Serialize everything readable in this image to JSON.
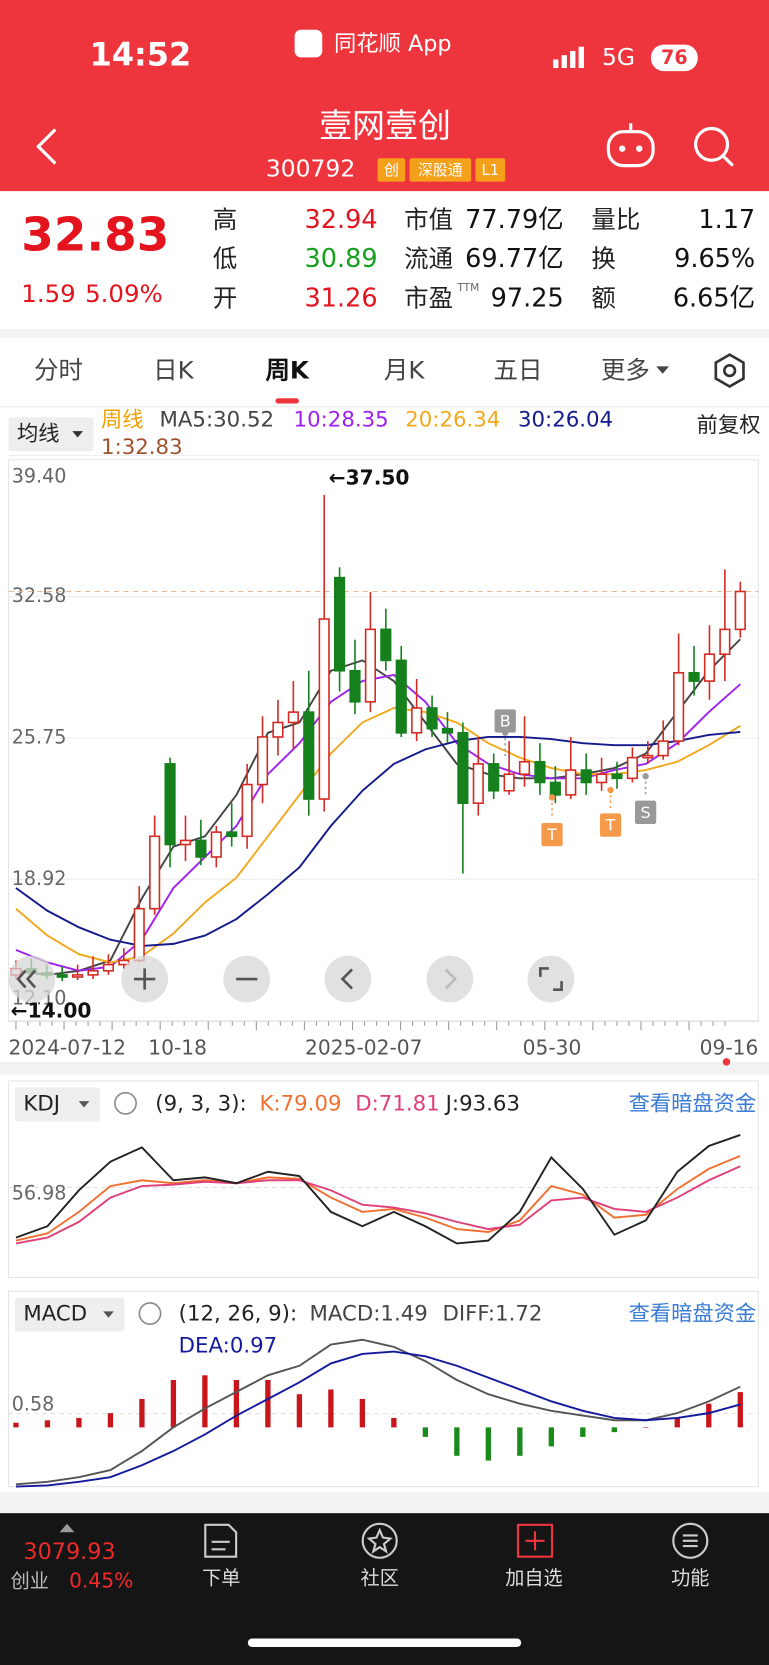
{
  "status_bar": {
    "time": "14:52",
    "app": "同花顺 App",
    "network": "5G",
    "battery": "76"
  },
  "header": {
    "title": "壹网壹创",
    "code": "300792",
    "tags": [
      "创",
      "深股通",
      "L1"
    ]
  },
  "quote": {
    "price": "32.83",
    "change": "1.59",
    "change_pct": "5.09%",
    "stats": [
      {
        "label": "高",
        "value": "32.94"
      },
      {
        "label": "低",
        "value": "30.89"
      },
      {
        "label": "开",
        "value": "31.26"
      },
      {
        "label": "市值",
        "value": "77.79亿"
      },
      {
        "label": "流通",
        "value": "69.77亿"
      },
      {
        "label": "市盈",
        "sup": "TTM",
        "value": "97.25"
      },
      {
        "label": "量比",
        "value": "1.17"
      },
      {
        "label": "换",
        "value": "9.65%"
      },
      {
        "label": "额",
        "value": "6.65亿"
      }
    ]
  },
  "tabs": {
    "items": [
      "分时",
      "日K",
      "周K",
      "月K",
      "五日",
      "更多"
    ],
    "active": 2
  },
  "ma_legend": {
    "selector": "均线",
    "period": "周线",
    "items": [
      "MA5:30.52",
      "10:28.35",
      "20:26.34",
      "30:26.04"
    ],
    "last": "1:32.83",
    "adjust": "前复权"
  },
  "price_chart": {
    "ylim": [
      12.1,
      39.4
    ],
    "yticks": [
      {
        "value": 39.4,
        "label": "39.40"
      },
      32.58,
      25.75,
      18.92,
      {
        "value": 12.1,
        "label": "12.10"
      }
    ],
    "x_labels": [
      "2024-07-12",
      "10-18",
      "2025-02-07",
      "05-30",
      "09-16"
    ],
    "up_color": "#d42a22",
    "down_color": "#15801c",
    "open": [
      14.3,
      14.6,
      14.4,
      14.3,
      14.2,
      14.3,
      14.5,
      14.8,
      15.0,
      17.5,
      24.5,
      20.6,
      20.8,
      20.0,
      21.2,
      21.0,
      23.5,
      25.8,
      26.5,
      27.0,
      22.8,
      33.5,
      29.0,
      27.5,
      31.0,
      29.5,
      26.0,
      27.2,
      26.2,
      26.0,
      22.6,
      24.5,
      23.2,
      24.0,
      24.6,
      23.6,
      23.0,
      24.2,
      23.6,
      24.0,
      23.8,
      24.8,
      24.9,
      25.6,
      28.9,
      28.5,
      29.8,
      31.0
    ],
    "high": [
      15.0,
      15.1,
      14.8,
      14.7,
      14.8,
      15.2,
      15.3,
      15.6,
      18.6,
      22.0,
      24.8,
      22.0,
      21.8,
      21.5,
      22.6,
      24.5,
      26.8,
      27.6,
      28.5,
      29.0,
      37.5,
      34.0,
      30.5,
      32.8,
      32.0,
      30.2,
      28.6,
      27.8,
      27.0,
      26.5,
      25.8,
      25.0,
      25.6,
      26.8,
      25.5,
      24.4,
      25.8,
      25.0,
      24.8,
      24.6,
      25.3,
      25.6,
      26.6,
      30.8,
      30.2,
      31.2,
      33.9,
      33.3
    ],
    "low": [
      14.1,
      14.2,
      14.1,
      14.0,
      14.05,
      14.1,
      14.3,
      14.6,
      14.9,
      17.2,
      19.5,
      19.8,
      19.6,
      19.5,
      20.5,
      20.4,
      22.6,
      24.9,
      25.2,
      22.0,
      22.2,
      28.0,
      26.9,
      27.0,
      29.0,
      25.8,
      25.6,
      25.8,
      25.5,
      19.2,
      22.0,
      22.8,
      23.0,
      23.4,
      23.0,
      22.6,
      22.8,
      23.0,
      23.2,
      23.3,
      23.6,
      24.5,
      24.7,
      25.4,
      27.8,
      27.6,
      28.5,
      30.6
    ],
    "close": [
      14.6,
      14.4,
      14.3,
      14.2,
      14.3,
      14.5,
      14.8,
      15.0,
      17.5,
      21.0,
      20.6,
      20.8,
      20.0,
      21.2,
      21.0,
      23.5,
      25.8,
      26.5,
      27.0,
      22.8,
      31.5,
      29.0,
      27.5,
      31.0,
      29.5,
      26.0,
      27.2,
      26.2,
      26.0,
      22.6,
      24.5,
      23.2,
      24.0,
      24.6,
      23.6,
      23.0,
      24.2,
      23.6,
      24.0,
      23.8,
      24.8,
      24.9,
      25.6,
      28.9,
      28.5,
      29.8,
      31.0,
      32.83
    ],
    "ma": [
      {
        "color": "#444444",
        "values": [
          14.5,
          14.3,
          14.5,
          15.0,
          18.0,
          20.5,
          21.0,
          23.0,
          26.0,
          26.5,
          29.0,
          29.5,
          28.5,
          26.5,
          24.5,
          24.0,
          23.8,
          23.8,
          24.0,
          24.3,
          25.0,
          27.0,
          29.0,
          30.52
        ]
      },
      {
        "color": "#a020f0",
        "values": [
          15.5,
          14.9,
          14.5,
          14.7,
          16.0,
          18.5,
          20.0,
          21.5,
          24.0,
          25.5,
          27.5,
          28.5,
          28.8,
          27.5,
          25.5,
          24.5,
          24.0,
          23.8,
          23.8,
          24.2,
          24.5,
          25.5,
          27.0,
          28.35
        ]
      },
      {
        "color": "#f2a81d",
        "values": [
          17.5,
          16.2,
          15.3,
          14.9,
          15.2,
          16.3,
          17.8,
          19.0,
          21.0,
          23.0,
          25.0,
          26.5,
          27.2,
          27.0,
          26.5,
          25.5,
          24.8,
          24.3,
          24.0,
          24.0,
          24.2,
          24.6,
          25.4,
          26.34
        ]
      },
      {
        "color": "#141a8c",
        "values": [
          18.5,
          17.4,
          16.6,
          16.0,
          15.7,
          15.8,
          16.2,
          17.0,
          18.2,
          19.5,
          21.5,
          23.2,
          24.5,
          25.2,
          25.6,
          25.8,
          25.8,
          25.7,
          25.5,
          25.4,
          25.4,
          25.6,
          25.9,
          26.04
        ]
      }
    ],
    "annotations": [
      "←37.50",
      "←14.00"
    ],
    "signals": [
      "B",
      "T",
      "T",
      "S"
    ]
  },
  "kdj": {
    "selector": "KDJ",
    "params": "(9, 3, 3):",
    "labels": [
      "K:79.09",
      "D:71.81",
      "J:93.63"
    ],
    "link": "查看暗盘资金",
    "ylim": [
      -5,
      115
    ],
    "yticks": [
      56.98
    ],
    "series": [
      {
        "color": "#f07030",
        "values": [
          20,
          25,
          40,
          58,
          62,
          60,
          62,
          60,
          64,
          63,
          50,
          40,
          42,
          36,
          28,
          26,
          34,
          58,
          52,
          36,
          38,
          56,
          70,
          79.09
        ]
      },
      {
        "color": "#e0407a",
        "values": [
          18,
          22,
          33,
          50,
          58,
          59,
          61,
          60,
          62,
          62,
          55,
          45,
          43,
          39,
          33,
          28,
          31,
          48,
          50,
          42,
          40,
          50,
          62,
          71.81
        ]
      },
      {
        "color": "#222222",
        "values": [
          22,
          30,
          55,
          75,
          85,
          62,
          64,
          60,
          68,
          65,
          40,
          30,
          40,
          30,
          18,
          20,
          40,
          78,
          56,
          24,
          34,
          68,
          86,
          93.63
        ]
      }
    ]
  },
  "macd": {
    "selector": "MACD",
    "params": "(12, 26, 9):",
    "labels": [
      "MACD:1.49",
      "DIFF:1.72"
    ],
    "dea_label": "DEA:0.97",
    "link": "查看暗盘资金",
    "ylim": [
      -2.5,
      4
    ],
    "yticks": [
      0.58
    ],
    "hist_up_color": "#c8161d",
    "hist_down_color": "#1a8a1a",
    "hist": [
      0.2,
      0.3,
      0.4,
      0.6,
      1.2,
      2.0,
      2.2,
      2.0,
      2.0,
      1.4,
      1.6,
      1.2,
      0.4,
      -0.4,
      -1.2,
      -1.4,
      -1.2,
      -0.8,
      -0.4,
      -0.2,
      0.0,
      0.4,
      1.0,
      1.49
    ],
    "series": [
      {
        "color": "#555555",
        "values": [
          -2.4,
          -2.3,
          -2.1,
          -1.8,
          -1.0,
          0.0,
          0.8,
          1.5,
          2.2,
          2.6,
          3.5,
          3.7,
          3.4,
          2.8,
          2.0,
          1.4,
          1.0,
          0.7,
          0.5,
          0.3,
          0.3,
          0.6,
          1.1,
          1.72
        ]
      },
      {
        "color": "#141a9c",
        "values": [
          -2.5,
          -2.45,
          -2.3,
          -2.1,
          -1.6,
          -1.0,
          -0.3,
          0.5,
          1.2,
          1.9,
          2.7,
          3.1,
          3.2,
          3.0,
          2.6,
          2.1,
          1.6,
          1.1,
          0.7,
          0.4,
          0.3,
          0.4,
          0.6,
          0.97
        ]
      }
    ]
  },
  "bottom_bar": {
    "index_value": "3079.93",
    "index_name": "创业",
    "index_pct": "0.45%",
    "nav": [
      "下单",
      "社区",
      "加自选",
      "功能"
    ]
  }
}
